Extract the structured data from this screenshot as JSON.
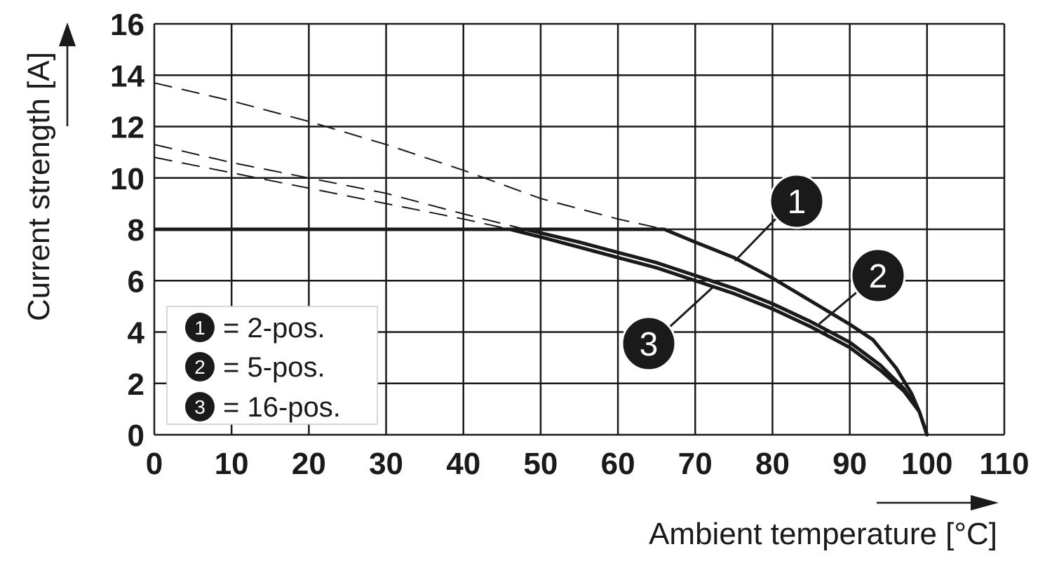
{
  "chart_data": {
    "type": "line",
    "xlabel": "Ambient temperature [°C]",
    "ylabel": "Current strength [A]",
    "xlim": [
      0,
      110
    ],
    "ylim": [
      0,
      16
    ],
    "x_ticks": [
      "0",
      "10",
      "20",
      "30",
      "40",
      "50",
      "60",
      "70",
      "80",
      "90",
      "100",
      "110"
    ],
    "y_ticks": [
      "0",
      "2",
      "4",
      "6",
      "8",
      "10",
      "12",
      "14",
      "16"
    ],
    "grid": true,
    "legend_placement": "bottom-left",
    "max_current_line": {
      "value": 8,
      "x_range": [
        0,
        66
      ]
    },
    "series": [
      {
        "marker": "1",
        "name": "= 2-pos.",
        "dashed": [
          [
            0,
            13.7
          ],
          [
            10,
            13.0
          ],
          [
            20,
            12.2
          ],
          [
            30,
            11.3
          ],
          [
            40,
            10.3
          ],
          [
            50,
            9.2
          ],
          [
            60,
            8.4
          ],
          [
            66,
            8.0
          ]
        ],
        "solid": [
          [
            66,
            8.0
          ],
          [
            70,
            7.5
          ],
          [
            75,
            6.9
          ],
          [
            80,
            6.1
          ],
          [
            85,
            5.2
          ],
          [
            90,
            4.3
          ],
          [
            93,
            3.7
          ],
          [
            96,
            2.6
          ],
          [
            98,
            1.6
          ],
          [
            99,
            0.9
          ],
          [
            100,
            0
          ]
        ]
      },
      {
        "marker": "2",
        "name": "= 5-pos.",
        "dashed": [
          [
            0,
            11.3
          ],
          [
            10,
            10.6
          ],
          [
            20,
            10.0
          ],
          [
            30,
            9.4
          ],
          [
            40,
            8.6
          ],
          [
            48,
            8.0
          ]
        ],
        "solid": [
          [
            48,
            8.0
          ],
          [
            55,
            7.5
          ],
          [
            60,
            7.1
          ],
          [
            65,
            6.7
          ],
          [
            70,
            6.2
          ],
          [
            75,
            5.7
          ],
          [
            80,
            5.1
          ],
          [
            85,
            4.4
          ],
          [
            90,
            3.6
          ],
          [
            94,
            2.7
          ],
          [
            97,
            1.8
          ],
          [
            99,
            0.9
          ],
          [
            100,
            0
          ]
        ]
      },
      {
        "marker": "3",
        "name": "= 16-pos.",
        "dashed": [
          [
            0,
            10.8
          ],
          [
            10,
            10.2
          ],
          [
            20,
            9.6
          ],
          [
            30,
            9.0
          ],
          [
            40,
            8.4
          ],
          [
            46,
            8.0
          ]
        ],
        "solid": [
          [
            46,
            8.0
          ],
          [
            50,
            7.7
          ],
          [
            55,
            7.3
          ],
          [
            60,
            6.9
          ],
          [
            65,
            6.5
          ],
          [
            70,
            6.0
          ],
          [
            75,
            5.5
          ],
          [
            80,
            4.9
          ],
          [
            85,
            4.2
          ],
          [
            90,
            3.4
          ],
          [
            94,
            2.5
          ],
          [
            97,
            1.7
          ],
          [
            99,
            0.9
          ],
          [
            100,
            0
          ]
        ]
      }
    ]
  }
}
